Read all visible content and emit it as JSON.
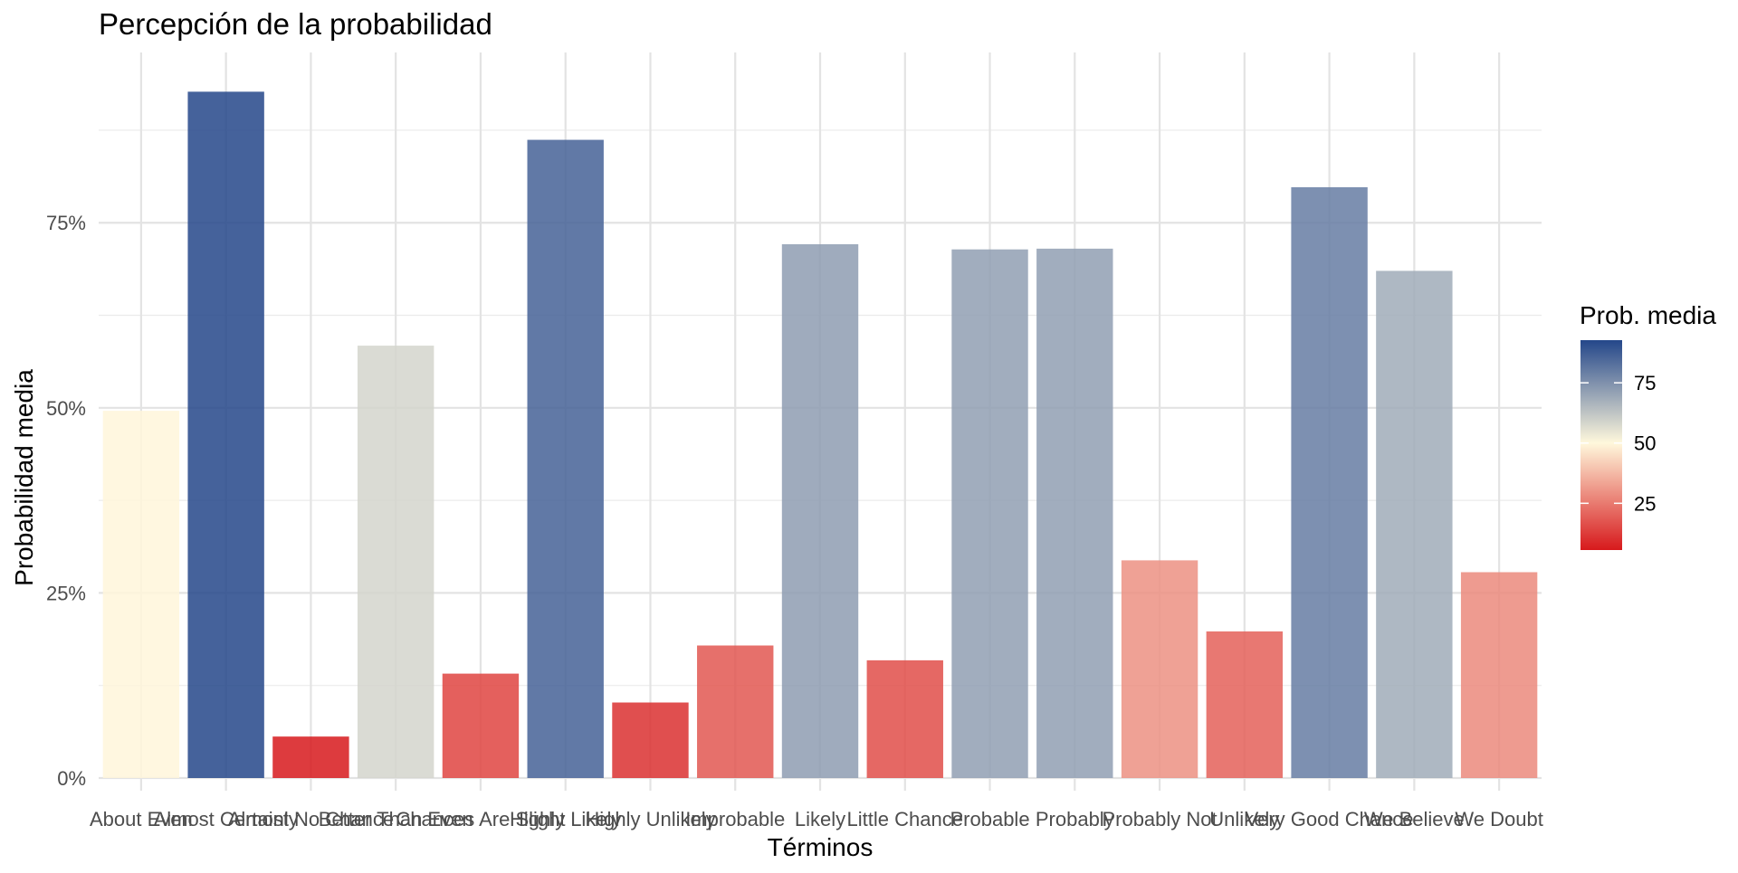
{
  "chart_data": {
    "type": "bar",
    "title": "Percepción de la probabilidad",
    "xlabel": "Términos",
    "ylabel": "Probabilidad media",
    "ylim": [
      0,
      98
    ],
    "y_ticks": [
      0,
      25,
      50,
      75
    ],
    "y_tick_labels": [
      "0%",
      "25%",
      "50%",
      "75%"
    ],
    "grid": true,
    "legend_placement": "right",
    "categories": [
      "About Even",
      "Almost Certainly",
      "Almost No Chance",
      "Better Than Even",
      "Chances Are Slight",
      "Highly Likely",
      "Highly Unlikely",
      "Improbable",
      "Likely",
      "Little Chance",
      "Probable",
      "Probably",
      "Probably Not",
      "Unlikely",
      "Very Good Chance",
      "We Believe",
      "We Doubt"
    ],
    "values": [
      49.6,
      92.7,
      5.6,
      58.4,
      14.1,
      86.2,
      10.2,
      17.9,
      72.1,
      15.9,
      71.4,
      71.5,
      29.4,
      19.8,
      79.8,
      68.5,
      27.8
    ],
    "color_scale": {
      "low_color": "#d7191c",
      "mid_color": "#fff8dc",
      "high_color": "#24478a",
      "midpoint": 50,
      "min": 5.6,
      "max": 92.7
    },
    "legend": {
      "title": "Prob. media",
      "breaks": [
        25,
        50,
        75
      ],
      "labels": [
        "25",
        "50",
        "75"
      ]
    }
  }
}
